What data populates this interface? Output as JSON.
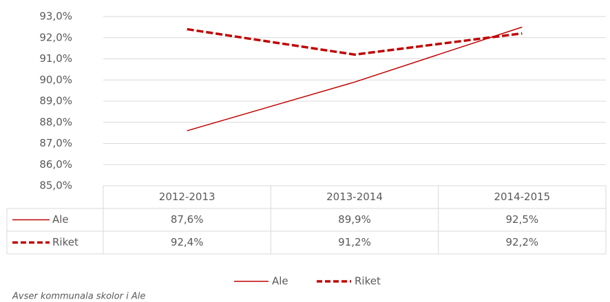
{
  "chart_data": {
    "type": "line",
    "categories": [
      "2012-2013",
      "2013-2014",
      "2014-2015"
    ],
    "series": [
      {
        "name": "Ale",
        "color": "#c00000",
        "dash": false,
        "values": [
          87.6,
          89.9,
          92.5
        ],
        "value_labels": [
          "87,6%",
          "89,9%",
          "92,5%"
        ]
      },
      {
        "name": "Riket",
        "color": "#c00000",
        "dash": true,
        "values": [
          92.4,
          91.2,
          92.2
        ],
        "value_labels": [
          "92,4%",
          "91,2%",
          "92,2%"
        ]
      }
    ],
    "ylim": [
      85,
      93
    ],
    "yticks": [
      {
        "value": 85,
        "label": "85,0%"
      },
      {
        "value": 86,
        "label": "86,0%"
      },
      {
        "value": 87,
        "label": "87,0%"
      },
      {
        "value": 88,
        "label": "88,0%"
      },
      {
        "value": 89,
        "label": "89,0%"
      },
      {
        "value": 90,
        "label": "90,0%"
      },
      {
        "value": 91,
        "label": "91,0%"
      },
      {
        "value": 92,
        "label": "92,0%"
      },
      {
        "value": 93,
        "label": "93,0%"
      }
    ],
    "grid": true,
    "data_table": true,
    "legend": "bottom",
    "note": "Avser kommunala skolor i Ale"
  }
}
